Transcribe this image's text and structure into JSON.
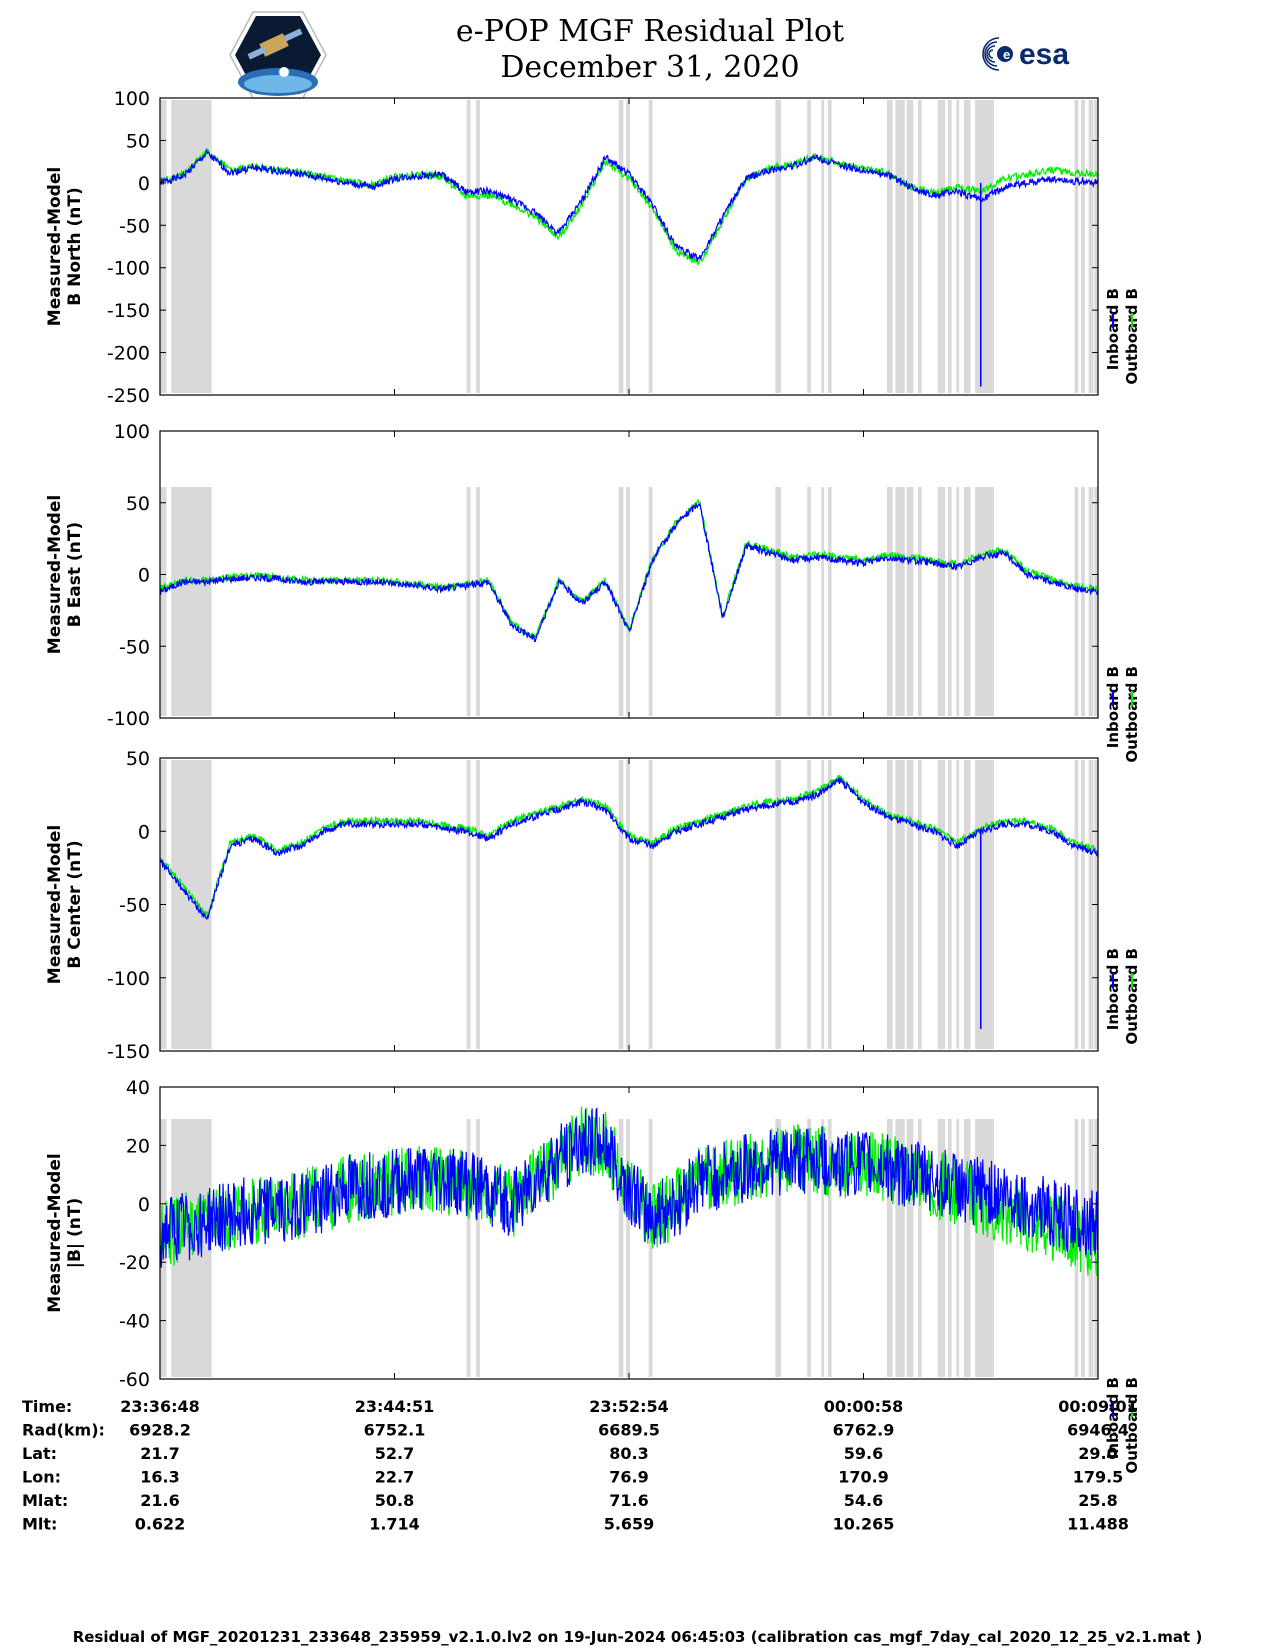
{
  "header": {
    "title": "e-POP MGF Residual Plot",
    "subtitle": "December 31, 2020",
    "logo_left_name": "cassiope-mission-logo",
    "logo_right_text": "esa"
  },
  "footer": {
    "text": "Residual of MGF_20201231_233648_235959_v2.1.0.lv2 on 19-Jun-2024 06:45:03 (calibration cas_mgf_7day_cal_2020_12_25_v2.1.mat )"
  },
  "colors": {
    "inboard": "#0000ff",
    "outboard": "#00ee00",
    "gap_shading": "#d9d9d9",
    "axis": "#000000"
  },
  "chart_data": [
    {
      "type": "line",
      "ylabel": [
        "Measured-Model",
        "B North (nT)"
      ],
      "ylim": [
        -250,
        100
      ],
      "yticks": [
        100,
        50,
        0,
        -50,
        -100,
        -150,
        -200,
        -250
      ],
      "series": [
        {
          "name": "Inboard B",
          "color": "#0000ff",
          "y": [
            0,
            8,
            35,
            12,
            18,
            14,
            10,
            5,
            0,
            -5,
            5,
            8,
            10,
            -10,
            -10,
            -20,
            -35,
            -60,
            -20,
            30,
            10,
            -25,
            -75,
            -90,
            -40,
            5,
            15,
            20,
            30,
            20,
            15,
            10,
            -5,
            -15,
            -10,
            -20,
            -5,
            0,
            5,
            2,
            0
          ]
        },
        {
          "name": "Outboard B",
          "color": "#00ee00",
          "y": [
            2,
            10,
            37,
            14,
            20,
            16,
            12,
            7,
            2,
            -3,
            7,
            10,
            8,
            -15,
            -15,
            -25,
            -40,
            -65,
            -25,
            25,
            5,
            -30,
            -80,
            -95,
            -45,
            5,
            17,
            22,
            32,
            22,
            17,
            12,
            -5,
            -12,
            -5,
            -10,
            5,
            10,
            15,
            12,
            10
          ]
        }
      ],
      "spikes": [
        {
          "t": 0.875,
          "y": -240
        }
      ]
    },
    {
      "type": "line",
      "ylabel": [
        "Measured-Model",
        "B East (nT)"
      ],
      "ylim": [
        -100,
        100
      ],
      "yticks": [
        100,
        50,
        0,
        -50,
        -100
      ],
      "series": [
        {
          "name": "Inboard B",
          "color": "#0000ff",
          "y": [
            -12,
            -5,
            -5,
            -3,
            -2,
            -3,
            -5,
            -5,
            -5,
            -5,
            -6,
            -8,
            -10,
            -8,
            -5,
            -35,
            -45,
            -5,
            -20,
            -5,
            -40,
            10,
            35,
            50,
            -30,
            20,
            15,
            10,
            12,
            10,
            8,
            12,
            10,
            8,
            5,
            12,
            15,
            0,
            -5,
            -10,
            -12
          ]
        },
        {
          "name": "Outboard B",
          "color": "#00ee00",
          "y": [
            -10,
            -4,
            -4,
            -2,
            -1,
            -2,
            -4,
            -4,
            -4,
            -4,
            -5,
            -7,
            -9,
            -7,
            -4,
            -34,
            -44,
            -4,
            -19,
            -4,
            -39,
            11,
            36,
            51,
            -29,
            22,
            17,
            12,
            14,
            12,
            10,
            14,
            12,
            10,
            7,
            14,
            17,
            2,
            -3,
            -8,
            -10
          ]
        }
      ]
    },
    {
      "type": "line",
      "ylabel": [
        "Measured-Model",
        "B Center (nT)"
      ],
      "ylim": [
        -150,
        50
      ],
      "yticks": [
        50,
        0,
        -50,
        -100,
        -150
      ],
      "series": [
        {
          "name": "Inboard B",
          "color": "#0000ff",
          "y": [
            -20,
            -40,
            -60,
            -10,
            -5,
            -15,
            -10,
            0,
            5,
            5,
            5,
            5,
            2,
            0,
            -5,
            5,
            10,
            15,
            20,
            15,
            -5,
            -10,
            0,
            5,
            10,
            15,
            18,
            20,
            25,
            35,
            20,
            10,
            5,
            0,
            -10,
            0,
            5,
            5,
            0,
            -10,
            -15
          ]
        },
        {
          "name": "Outboard B",
          "color": "#00ee00",
          "y": [
            -18,
            -38,
            -58,
            -8,
            -3,
            -13,
            -8,
            2,
            7,
            7,
            7,
            7,
            4,
            2,
            -3,
            7,
            12,
            17,
            22,
            17,
            -3,
            -8,
            2,
            7,
            12,
            17,
            20,
            22,
            27,
            37,
            22,
            12,
            7,
            2,
            -8,
            2,
            7,
            7,
            2,
            -8,
            -13
          ]
        }
      ],
      "spikes": [
        {
          "t": 0.875,
          "y": -135
        }
      ]
    },
    {
      "type": "line",
      "ylabel": [
        "Measured-Model",
        "|B| (nT)"
      ],
      "ylim": [
        -60,
        40
      ],
      "yticks": [
        40,
        20,
        0,
        -20,
        -40,
        -60
      ],
      "series": [
        {
          "name": "Inboard B",
          "color": "#0000ff",
          "y": [
            -10,
            -8,
            -6,
            -4,
            -2,
            -2,
            0,
            2,
            5,
            6,
            7,
            8,
            8,
            7,
            5,
            0,
            8,
            15,
            22,
            20,
            5,
            -5,
            0,
            8,
            10,
            12,
            14,
            15,
            15,
            14,
            13,
            12,
            10,
            8,
            6,
            4,
            2,
            0,
            -3,
            -5,
            -8
          ]
        },
        {
          "name": "Outboard B",
          "color": "#00ee00",
          "y": [
            -12,
            -8,
            -6,
            -4,
            -2,
            -2,
            0,
            2,
            5,
            6,
            7,
            8,
            8,
            7,
            5,
            0,
            8,
            15,
            22,
            20,
            5,
            -5,
            0,
            8,
            10,
            12,
            14,
            15,
            15,
            14,
            13,
            12,
            10,
            7,
            4,
            1,
            -2,
            -5,
            -8,
            -11,
            -14
          ]
        }
      ],
      "amplitude": 12
    }
  ],
  "gaps": [
    [
      0.0,
      0.007
    ],
    [
      0.012,
      0.055
    ],
    [
      0.327,
      0.331
    ],
    [
      0.337,
      0.341
    ],
    [
      0.489,
      0.494
    ],
    [
      0.497,
      0.501
    ],
    [
      0.521,
      0.525
    ],
    [
      0.656,
      0.662
    ],
    [
      0.69,
      0.694
    ],
    [
      0.705,
      0.708
    ],
    [
      0.712,
      0.716
    ],
    [
      0.775,
      0.781
    ],
    [
      0.784,
      0.794
    ],
    [
      0.796,
      0.803
    ],
    [
      0.808,
      0.812
    ],
    [
      0.829,
      0.837
    ],
    [
      0.84,
      0.844
    ],
    [
      0.849,
      0.852
    ],
    [
      0.857,
      0.864
    ],
    [
      0.869,
      0.889
    ],
    [
      0.975,
      0.979
    ],
    [
      0.982,
      0.986
    ],
    [
      0.99,
      0.995
    ],
    [
      0.996,
      1.0
    ]
  ],
  "legend": {
    "inboard": "Inboard B",
    "outboard": "Outboard B"
  },
  "xaxis": {
    "row_labels": [
      "Time:",
      "Rad(km):",
      "Lat:",
      "Lon:",
      "Mlat:",
      "Mlt:"
    ],
    "columns": [
      [
        "23:36:48",
        "6928.2",
        "21.7",
        "16.3",
        "21.6",
        "0.622"
      ],
      [
        "23:44:51",
        "6752.1",
        "52.7",
        "22.7",
        "50.8",
        "1.714"
      ],
      [
        "23:52:54",
        "6689.5",
        "80.3",
        "76.9",
        "71.6",
        "5.659"
      ],
      [
        "00:00:58",
        "6762.9",
        "59.6",
        "170.9",
        "54.6",
        "10.265"
      ],
      [
        "00:09:01",
        "6946.4",
        "29.0",
        "179.5",
        "25.8",
        "11.488"
      ]
    ]
  }
}
